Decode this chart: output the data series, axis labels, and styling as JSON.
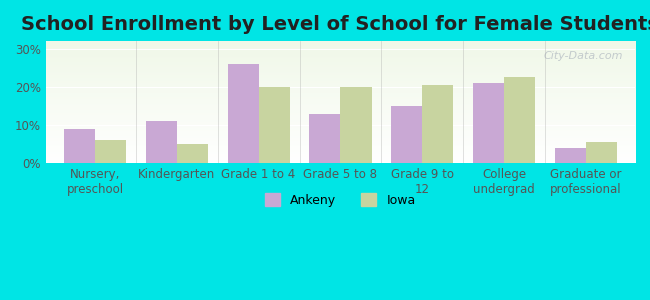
{
  "title": "School Enrollment by Level of School for Female Students",
  "categories": [
    "Nursery,\npreschool",
    "Kindergarten",
    "Grade 1 to 4",
    "Grade 5 to 8",
    "Grade 9 to\n12",
    "College\nundergrad",
    "Graduate or\nprofessional"
  ],
  "ankeny_values": [
    9.0,
    11.0,
    26.0,
    13.0,
    15.0,
    21.0,
    4.0
  ],
  "iowa_values": [
    6.0,
    5.0,
    20.0,
    20.0,
    20.5,
    22.5,
    5.5
  ],
  "ankeny_color": "#c9a8d4",
  "iowa_color": "#c8d4a0",
  "background_color": "#00e5e5",
  "plot_bg_start": "#f0f8e8",
  "ylim": [
    0,
    32
  ],
  "yticks": [
    0,
    10,
    20,
    30
  ],
  "ytick_labels": [
    "0%",
    "10%",
    "20%",
    "30%"
  ],
  "bar_width": 0.38,
  "legend_labels": [
    "Ankeny",
    "Iowa"
  ],
  "watermark": "City-Data.com",
  "title_fontsize": 14,
  "tick_fontsize": 8.5,
  "legend_fontsize": 9
}
